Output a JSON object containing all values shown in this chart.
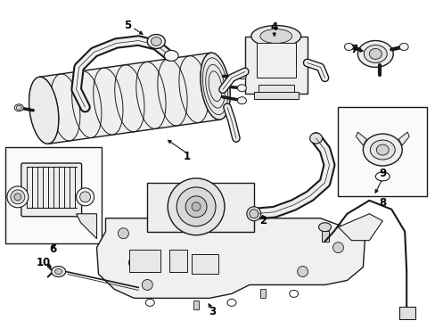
{
  "background_color": "#ffffff",
  "figsize": [
    4.89,
    3.6
  ],
  "dpi": 100,
  "image_b64": ""
}
